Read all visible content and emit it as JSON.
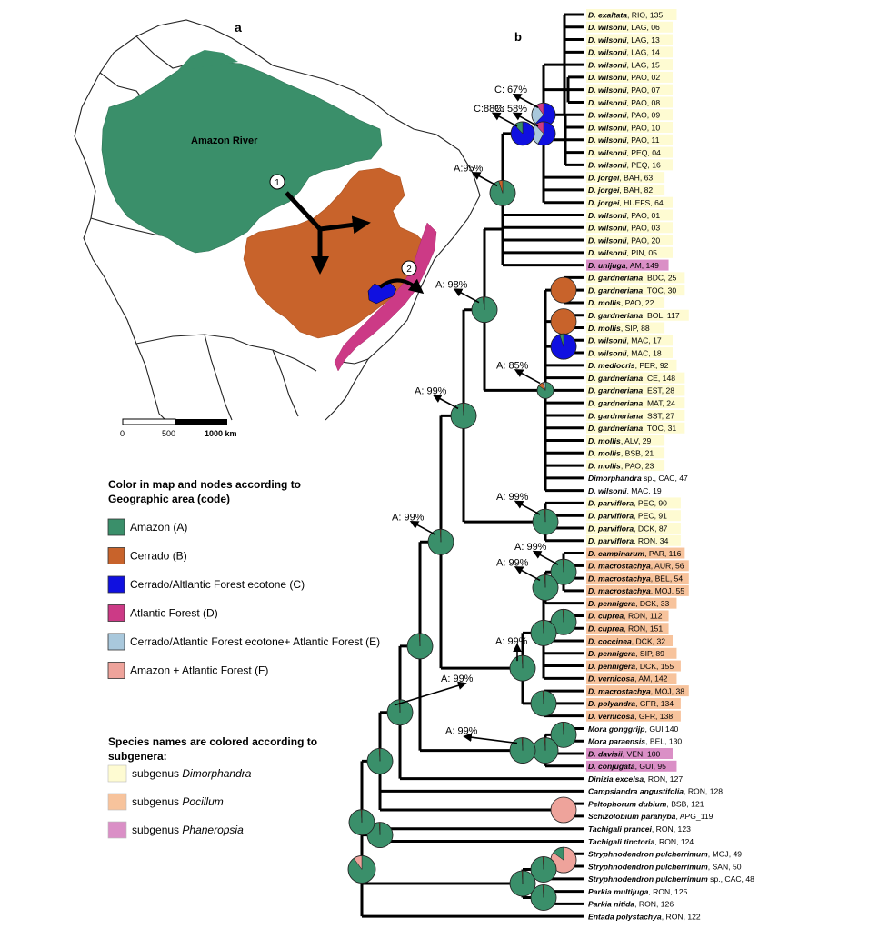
{
  "panel_a_label": "a",
  "panel_b_label": "b",
  "map": {
    "river_label": "Amazon River",
    "route_1": "1",
    "route_2": "2",
    "scale": {
      "zero": "0",
      "mid": "500",
      "end": "1000 km"
    }
  },
  "legend": {
    "title_line1": "Color in map and nodes according to",
    "title_line2": "Geographic area (code)",
    "areas": [
      {
        "label": "Amazon  (A)",
        "color": "#3a8f6a"
      },
      {
        "label": "Cerrado (B)",
        "color": "#c8632b"
      },
      {
        "label": "Cerrado/Altlantic Forest ecotone (C)",
        "color": "#1010e0"
      },
      {
        "label": "Atlantic Forest (D)",
        "color": "#cc3a86"
      },
      {
        "label": "Cerrado/Atlantic Forest ecotone+ Atlantic Forest (E)",
        "color": "#a9c8dc"
      },
      {
        "label": "Amazon + Atlantic Forest (F)",
        "color": "#eea39b"
      }
    ]
  },
  "subgenera": {
    "title_line1": "Species names are colored  according to",
    "title_line2": "subgenera:",
    "items": [
      {
        "prefix": "subgenus ",
        "name": "Dimorphandra",
        "color": "#fefbd2"
      },
      {
        "prefix": "subgenus ",
        "name": "Pocillum",
        "color": "#f7c39c"
      },
      {
        "prefix": "subgenus ",
        "name": "Phaneropsia",
        "color": "#da8fc6"
      }
    ]
  },
  "support_labels": [
    "C: 67%",
    "C: 58%",
    "C:88%",
    "A:95%",
    "A: 98%",
    "A: 85%",
    "A: 99%",
    "A: 99%",
    "A: 99%",
    "A: 99%",
    "A: 99%",
    "A: 99%",
    "A: 99%",
    "A: 99%"
  ],
  "taxa": [
    {
      "genus": "D. exaltata",
      "suffix": ", RIO, 135",
      "sub": "dim"
    },
    {
      "genus": "D. wilsonii",
      "suffix": ", LAG, 06",
      "sub": "dim"
    },
    {
      "genus": "D. wilsonii",
      "suffix": ", LAG, 13",
      "sub": "dim"
    },
    {
      "genus": "D. wilsonii",
      "suffix": ", LAG, 14",
      "sub": "dim"
    },
    {
      "genus": "D. wilsonii",
      "suffix": ", LAG, 15",
      "sub": "dim"
    },
    {
      "genus": "D. wilsonii",
      "suffix": ", PAO, 02",
      "sub": "dim"
    },
    {
      "genus": "D. wilsonii",
      "suffix": ", PAO, 07",
      "sub": "dim"
    },
    {
      "genus": "D. wilsonii",
      "suffix": ", PAO, 08",
      "sub": "dim"
    },
    {
      "genus": "D. wilsonii",
      "suffix": ", PAO, 09",
      "sub": "dim"
    },
    {
      "genus": "D. wilsonii",
      "suffix": ", PAO, 10",
      "sub": "dim"
    },
    {
      "genus": "D. wilsonii",
      "suffix": ", PAO, 11",
      "sub": "dim"
    },
    {
      "genus": "D. wilsonii",
      "suffix": ", PEQ, 04",
      "sub": "dim"
    },
    {
      "genus": "D. wilsonii",
      "suffix": ", PEQ, 16",
      "sub": "dim"
    },
    {
      "genus": "D. jorgei",
      "suffix": ", BAH, 63",
      "sub": "dim"
    },
    {
      "genus": "D. jorgei",
      "suffix": ", BAH, 82",
      "sub": "dim"
    },
    {
      "genus": "D. jorgei",
      "suffix": ", HUEFS, 64",
      "sub": "dim"
    },
    {
      "genus": "D. wilsonii",
      "suffix": ", PAO, 01",
      "sub": "dim"
    },
    {
      "genus": "D. wilsonii",
      "suffix": ", PAO, 03",
      "sub": "dim"
    },
    {
      "genus": "D. wilsonii",
      "suffix": ", PAO, 20",
      "sub": "dim"
    },
    {
      "genus": "D. wilsonii",
      "suffix": ", PIN, 05",
      "sub": "dim"
    },
    {
      "genus": "D. unijuga",
      "suffix": ", AM, 149",
      "sub": "pha"
    },
    {
      "genus": "D. gardneriana",
      "suffix": ", BDC, 25",
      "sub": "dim"
    },
    {
      "genus": "D. gardneriana",
      "suffix": ", TOC, 30",
      "sub": "dim"
    },
    {
      "genus": "D. mollis",
      "suffix": ", PAO, 22",
      "sub": "dim"
    },
    {
      "genus": "D. gardneriana",
      "suffix": ", BOL, 117",
      "sub": "dim"
    },
    {
      "genus": "D. mollis",
      "suffix": ", SIP, 88",
      "sub": "dim"
    },
    {
      "genus": "D. wilsonii",
      "suffix": ", MAC, 17",
      "sub": "dim"
    },
    {
      "genus": "D. wilsonii",
      "suffix": ", MAC, 18",
      "sub": "dim"
    },
    {
      "genus": "D. mediocris",
      "suffix": ", PER, 92",
      "sub": "dim"
    },
    {
      "genus": "D. gardneriana",
      "suffix": ", CE, 148",
      "sub": "dim"
    },
    {
      "genus": "D. gardneriana",
      "suffix": ", EST, 28",
      "sub": "dim"
    },
    {
      "genus": "D. gardneriana",
      "suffix": ", MAT, 24",
      "sub": "dim"
    },
    {
      "genus": "D. gardneriana",
      "suffix": ", SST, 27",
      "sub": "dim"
    },
    {
      "genus": "D. gardneriana",
      "suffix": ", TOC, 31",
      "sub": "dim"
    },
    {
      "genus": "D. mollis",
      "suffix": ", ALV, 29",
      "sub": "dim"
    },
    {
      "genus": "D. mollis",
      "suffix": ", BSB, 21",
      "sub": "dim"
    },
    {
      "genus": "D. mollis",
      "suffix": ", PAO, 23",
      "sub": "dim"
    },
    {
      "genus": "Dimorphandra",
      "suffix": " sp., CAC, 47",
      "sub": "none"
    },
    {
      "genus": "D. wilsonii",
      "suffix": ", MAC, 19",
      "sub": "none"
    },
    {
      "genus": "D. parviflora",
      "suffix": ", PEC, 90",
      "sub": "dim"
    },
    {
      "genus": "D. parviflora",
      "suffix": ", PEC, 91",
      "sub": "dim"
    },
    {
      "genus": "D. parviflora",
      "suffix": ", DCK, 87",
      "sub": "dim"
    },
    {
      "genus": "D. parviflora",
      "suffix": ", RON, 34",
      "sub": "dim"
    },
    {
      "genus": "D. campinarum",
      "suffix": ", PAR, 116",
      "sub": "poc"
    },
    {
      "genus": "D. macrostachya",
      "suffix": ", AUR, 56",
      "sub": "poc"
    },
    {
      "genus": "D. macrostachya",
      "suffix": ", BEL, 54",
      "sub": "poc"
    },
    {
      "genus": "D. macrostachya",
      "suffix": ", MOJ, 55",
      "sub": "poc"
    },
    {
      "genus": "D. pennigera",
      "suffix": ", DCK, 33",
      "sub": "poc"
    },
    {
      "genus": "D. cuprea",
      "suffix": ", RON, 112",
      "sub": "poc"
    },
    {
      "genus": "D. cuprea",
      "suffix": ", RON, 151",
      "sub": "poc"
    },
    {
      "genus": "D. coccinea",
      "suffix": ", DCK, 32",
      "sub": "poc"
    },
    {
      "genus": "D. pennigera",
      "suffix": ", SIP, 89",
      "sub": "poc"
    },
    {
      "genus": "D. pennigera",
      "suffix": ", DCK, 155",
      "sub": "poc"
    },
    {
      "genus": "D. vernicosa",
      "suffix": ", AM, 142",
      "sub": "poc"
    },
    {
      "genus": "D. macrostachya",
      "suffix": ", MOJ, 38",
      "sub": "poc"
    },
    {
      "genus": "D. polyandra",
      "suffix": ", GFR, 134",
      "sub": "poc"
    },
    {
      "genus": "D. vernicosa",
      "suffix": ", GFR, 138",
      "sub": "poc"
    },
    {
      "genus": "Mora gonggrijp",
      "suffix": ", GUI 140",
      "sub": "none"
    },
    {
      "genus": "Mora paraensis",
      "suffix": ", BEL, 130",
      "sub": "none"
    },
    {
      "genus": "D. davisii",
      "suffix": ", VEN, 100",
      "sub": "pha"
    },
    {
      "genus": "D. conjugata",
      "suffix": ", GUI, 95",
      "sub": "pha"
    },
    {
      "genus": "Dinizia excelsa",
      "suffix": ", RON, 127",
      "sub": "none"
    },
    {
      "genus": "Campsiandra angustifolia",
      "suffix": ", RON, 128",
      "sub": "none"
    },
    {
      "genus": "Peltophorum dubium",
      "suffix": ", BSB, 121",
      "sub": "none"
    },
    {
      "genus": "Schizolobium parahyba",
      "suffix": ", APG_119",
      "sub": "none"
    },
    {
      "genus": "Tachigali prancei",
      "suffix": ", RON, 123",
      "sub": "none"
    },
    {
      "genus": "Tachigali tinctoria",
      "suffix": ", RON, 124",
      "sub": "none"
    },
    {
      "genus": "Stryphnodendron pulcherrimum",
      "suffix": ", MOJ, 49",
      "sub": "none"
    },
    {
      "genus": "Stryphnodendron pulcherrimum",
      "suffix": ", SAN, 50",
      "sub": "none"
    },
    {
      "genus": "Stryphnodendron pulcherrimum",
      "suffix": " sp., CAC, 48",
      "sub": "none"
    },
    {
      "genus": "Parkia multijuga",
      "suffix": ", RON, 125",
      "sub": "none"
    },
    {
      "genus": "Parkia nitida",
      "suffix": ", RON, 126",
      "sub": "none"
    },
    {
      "genus": "Entada polystachya",
      "suffix": ", RON, 122",
      "sub": "none"
    }
  ]
}
